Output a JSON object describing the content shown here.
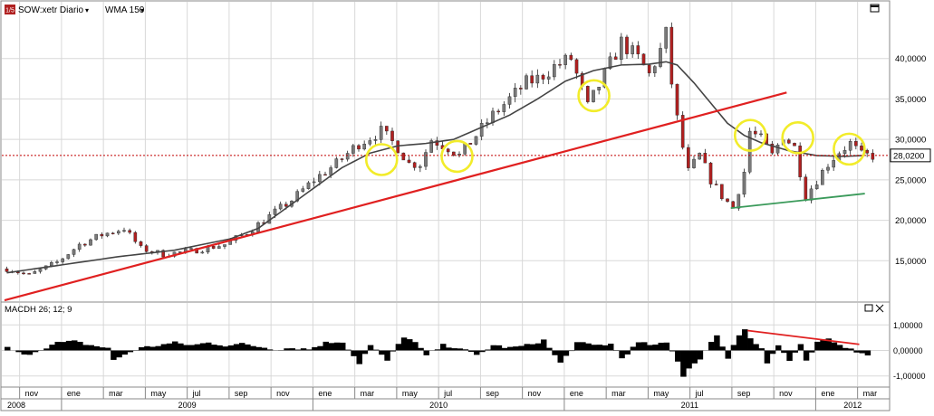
{
  "header": {
    "symbol": "SOW:xetr Diario",
    "indicator": "WMA 150",
    "badge": "1/5",
    "dropdown_glyph": "▾"
  },
  "macd_header": {
    "label": "MACDH 26; 12; 9"
  },
  "price_axis": {
    "ticks": [
      15,
      20,
      25,
      30,
      35,
      40
    ],
    "labels": [
      "15,0000",
      "20,0000",
      "25,0000",
      "30,0000",
      "35,0000",
      "40,0000"
    ],
    "current_label": "28,0200",
    "current_value": 28.02
  },
  "macd_axis": {
    "ticks": [
      1,
      0,
      -1
    ],
    "labels": [
      "1,00000",
      "0,00000",
      "-1,00000"
    ]
  },
  "time_axis": {
    "months": [
      "nov",
      "ene",
      "mar",
      "may",
      "jul",
      "sep",
      "nov",
      "ene",
      "mar",
      "may",
      "jul",
      "sep",
      "nov",
      "ene",
      "mar",
      "may",
      "jul",
      "sep",
      "nov",
      "ene",
      "mar"
    ],
    "years": [
      "2008",
      "2009",
      "2010",
      "2011",
      "2012"
    ]
  },
  "colors": {
    "candle_up": "#7a7a7a",
    "candle_down": "#b02020",
    "wma": "#444444",
    "trendline_red": "#e02020",
    "trendline_green": "#3a9a5a",
    "circle": "#f2ec2a",
    "current_line": "#c00000",
    "grid": "#d8d8d8"
  },
  "chart_data": {
    "type": "candlestick",
    "price_ylim": [
      10,
      45
    ],
    "macd_ylim": [
      -1.4,
      1.4
    ],
    "grid": true,
    "price_path": [
      [
        0,
        14
      ],
      [
        4,
        13.2
      ],
      [
        9,
        14.8
      ],
      [
        13,
        17
      ],
      [
        17,
        18.2
      ],
      [
        21,
        19
      ],
      [
        24,
        16.5
      ],
      [
        28,
        15.8
      ],
      [
        33,
        16.2
      ],
      [
        39,
        17
      ],
      [
        43,
        18.5
      ],
      [
        47,
        20.5
      ],
      [
        51,
        22.5
      ],
      [
        55,
        25
      ],
      [
        59,
        27
      ],
      [
        63,
        29.5
      ],
      [
        67,
        31
      ],
      [
        70,
        29
      ],
      [
        72,
        27
      ],
      [
        74,
        27
      ],
      [
        76,
        30
      ],
      [
        79,
        29
      ],
      [
        81,
        28
      ],
      [
        84,
        30.5
      ],
      [
        87,
        33
      ],
      [
        90,
        35
      ],
      [
        93,
        37
      ],
      [
        95,
        37.5
      ],
      [
        98,
        39
      ],
      [
        101,
        40
      ],
      [
        104,
        34
      ],
      [
        107,
        38
      ],
      [
        110,
        42
      ],
      [
        113,
        40
      ],
      [
        115,
        38
      ],
      [
        117,
        41
      ],
      [
        118,
        43
      ],
      [
        119,
        37
      ],
      [
        120,
        32.5
      ],
      [
        121,
        29
      ],
      [
        122,
        26
      ],
      [
        124,
        28
      ],
      [
        126,
        25
      ],
      [
        128,
        23
      ],
      [
        130,
        21.5
      ],
      [
        132,
        26
      ],
      [
        133,
        31
      ],
      [
        135,
        30
      ],
      [
        137,
        28
      ],
      [
        139,
        30.5
      ],
      [
        141,
        29
      ],
      [
        143,
        23
      ],
      [
        145,
        25
      ],
      [
        147,
        27
      ],
      [
        149,
        28.5
      ],
      [
        151,
        29.5
      ],
      [
        153,
        28
      ]
    ],
    "wma_path": [
      [
        0,
        13.5
      ],
      [
        10,
        14.5
      ],
      [
        20,
        15.5
      ],
      [
        30,
        16.3
      ],
      [
        40,
        17.7
      ],
      [
        45,
        19
      ],
      [
        50,
        21.5
      ],
      [
        55,
        24
      ],
      [
        60,
        26.5
      ],
      [
        65,
        28.3
      ],
      [
        70,
        29.2
      ],
      [
        75,
        29.5
      ],
      [
        80,
        30
      ],
      [
        85,
        31.5
      ],
      [
        90,
        33
      ],
      [
        95,
        35
      ],
      [
        100,
        37.2
      ],
      [
        105,
        38.5
      ],
      [
        110,
        39.2
      ],
      [
        115,
        39.3
      ],
      [
        118,
        39.6
      ],
      [
        120,
        39.2
      ],
      [
        123,
        37
      ],
      [
        126,
        34.5
      ],
      [
        129,
        32
      ],
      [
        132,
        30.5
      ],
      [
        135,
        29.6
      ],
      [
        140,
        28.6
      ],
      [
        145,
        28
      ],
      [
        150,
        27.9
      ],
      [
        153,
        28
      ]
    ],
    "macd_path": [
      [
        0,
        0.1
      ],
      [
        3,
        -0.2
      ],
      [
        6,
        0.05
      ],
      [
        9,
        0.3
      ],
      [
        12,
        0.35
      ],
      [
        15,
        0.2
      ],
      [
        18,
        0.1
      ],
      [
        19,
        -0.4
      ],
      [
        21,
        -0.15
      ],
      [
        24,
        0.1
      ],
      [
        27,
        0.2
      ],
      [
        30,
        0.3
      ],
      [
        33,
        0.2
      ],
      [
        36,
        0.3
      ],
      [
        39,
        0.2
      ],
      [
        42,
        0.25
      ],
      [
        45,
        0.15
      ],
      [
        48,
        0.05
      ],
      [
        51,
        0.1
      ],
      [
        54,
        0.05
      ],
      [
        57,
        0.3
      ],
      [
        60,
        0.35
      ],
      [
        63,
        -0.5
      ],
      [
        65,
        0.2
      ],
      [
        68,
        -0.4
      ],
      [
        71,
        0.55
      ],
      [
        73,
        0.3
      ],
      [
        75,
        -0.2
      ],
      [
        78,
        0.2
      ],
      [
        81,
        0.1
      ],
      [
        84,
        -0.2
      ],
      [
        87,
        0.2
      ],
      [
        90,
        0.1
      ],
      [
        93,
        0.2
      ],
      [
        96,
        0.4
      ],
      [
        99,
        -0.5
      ],
      [
        102,
        0.3
      ],
      [
        105,
        0.2
      ],
      [
        108,
        0.25
      ],
      [
        110,
        -0.3
      ],
      [
        113,
        0.3
      ],
      [
        116,
        0.2
      ],
      [
        118,
        0.3
      ],
      [
        120,
        -0.4
      ],
      [
        121,
        -1.0
      ],
      [
        122,
        -0.7
      ],
      [
        124,
        -0.3
      ],
      [
        126,
        0.3
      ],
      [
        127,
        0.55
      ],
      [
        128,
        0.2
      ],
      [
        129,
        -0.3
      ],
      [
        130,
        0.2
      ],
      [
        131,
        0.6
      ],
      [
        132,
        0.85
      ],
      [
        133,
        0.5
      ],
      [
        135,
        0.1
      ],
      [
        136,
        -0.5
      ],
      [
        138,
        0.2
      ],
      [
        140,
        -0.4
      ],
      [
        142,
        0.2
      ],
      [
        143,
        -0.45
      ],
      [
        145,
        0.3
      ],
      [
        147,
        0.45
      ],
      [
        149,
        0.2
      ],
      [
        151,
        0.1
      ],
      [
        153,
        -0.15
      ]
    ],
    "trendlines": [
      {
        "name": "support-red",
        "points": [
          [
            0,
            10.1
          ],
          [
            140,
            35.8
          ]
        ]
      },
      {
        "name": "support-green",
        "points": [
          [
            130,
            21.5
          ],
          [
            154,
            23.3
          ]
        ]
      }
    ],
    "macd_trendline": {
      "points": [
        [
          133,
          0.78
        ],
        [
          153,
          0.24
        ]
      ]
    },
    "circles": [
      {
        "x": 67.5,
        "y": 27.5
      },
      {
        "x": 81.0,
        "y": 27.9
      },
      {
        "x": 105.5,
        "y": 35.4
      },
      {
        "x": 133.5,
        "y": 30.5
      },
      {
        "x": 142.0,
        "y": 30.2
      },
      {
        "x": 151.2,
        "y": 28.8
      }
    ]
  }
}
